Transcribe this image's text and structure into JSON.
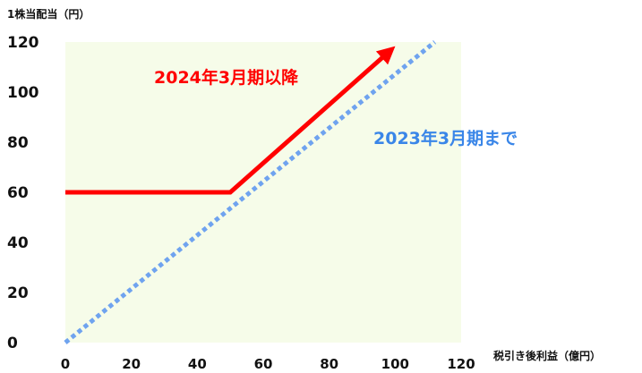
{
  "chart_data": {
    "type": "line",
    "ylabel": "1株当配当（円）",
    "xlabel": "税引き後利益（億円）",
    "xlim": [
      0,
      120
    ],
    "ylim": [
      0,
      120
    ],
    "x_ticks": [
      0,
      20,
      40,
      60,
      80,
      100,
      120
    ],
    "y_ticks": [
      0,
      20,
      40,
      60,
      80,
      100,
      120
    ],
    "grid": false,
    "plot_background": "#f6fce9",
    "series": [
      {
        "name": "2024年3月期以降",
        "color": "#ff0000",
        "style": "solid",
        "arrow": true,
        "points": [
          [
            0,
            60
          ],
          [
            50,
            60
          ],
          [
            98,
            116
          ]
        ]
      },
      {
        "name": "2023年3月期まで",
        "color": "#6fa3ef",
        "style": "dotted",
        "arrow": false,
        "points": [
          [
            0,
            0
          ],
          [
            112,
            120
          ]
        ]
      }
    ],
    "annotations": [
      {
        "text": "2024年3月期以降",
        "color": "#ff0000"
      },
      {
        "text": "2023年3月期まで",
        "color": "#3a86e8"
      }
    ]
  }
}
